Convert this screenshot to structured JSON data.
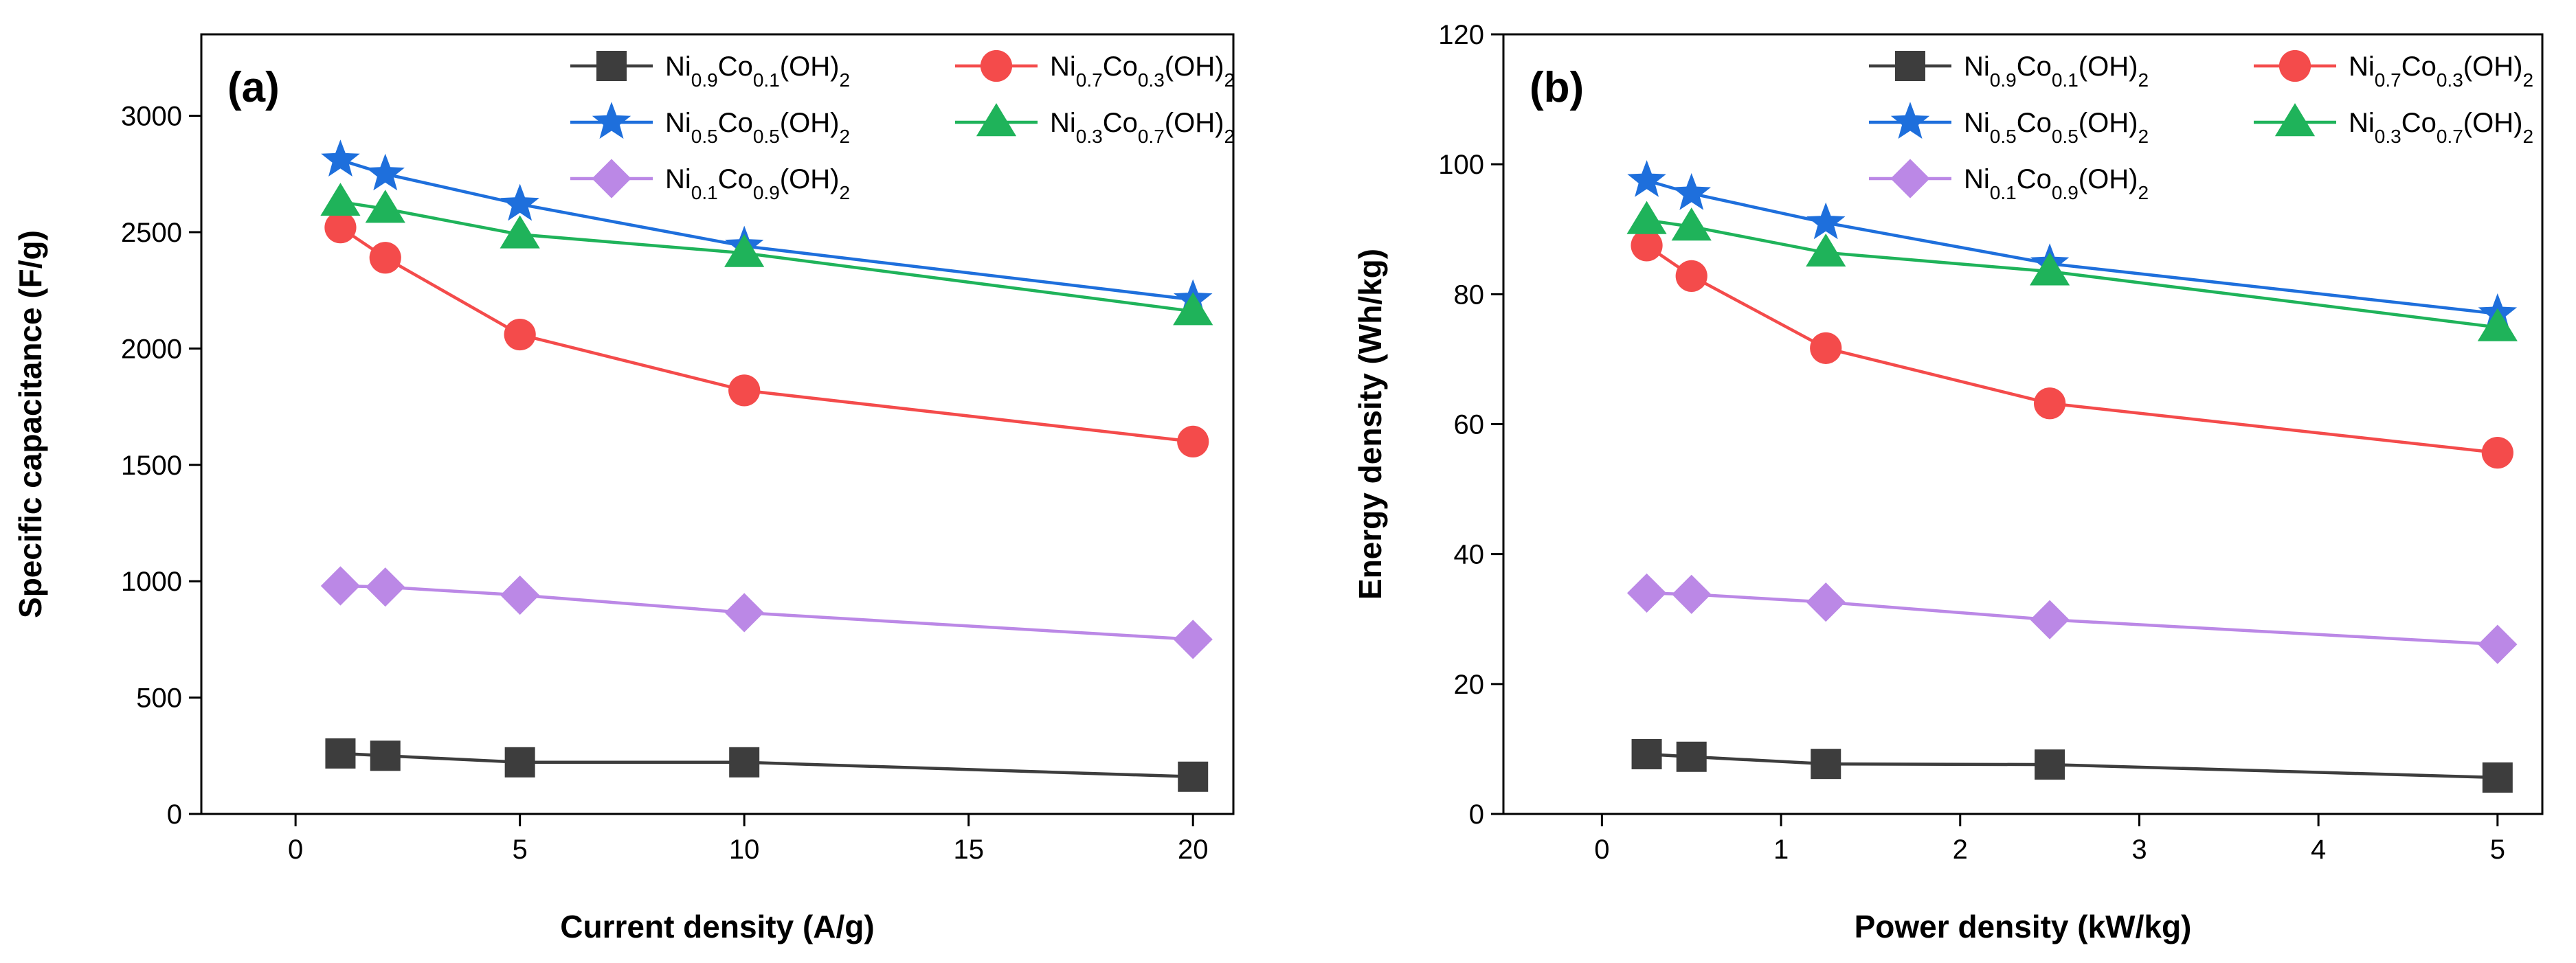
{
  "chart_data": [
    {
      "type": "line",
      "panel_label": "(a)",
      "xlabel": "Current density (A/g)",
      "ylabel": "Specific capacitance  (F/g)",
      "xlim": [
        -2.1,
        20.9
      ],
      "ylim": [
        0,
        3350
      ],
      "xticks": [
        0,
        5,
        10,
        15,
        20
      ],
      "yticks": [
        0,
        500,
        1000,
        1500,
        2000,
        2500,
        3000
      ],
      "x": [
        1,
        2,
        5,
        10,
        20
      ],
      "legend_position": "top-right",
      "series": [
        {
          "key": "s1",
          "name": "Ni0.9Co0.1(OH)2",
          "color": "#3d3d3d",
          "marker": "square",
          "values": [
            260,
            250,
            222,
            222,
            160
          ]
        },
        {
          "key": "s2",
          "name": "Ni0.7Co0.3(OH)2",
          "color": "#f44b4b",
          "marker": "circle",
          "values": [
            2520,
            2390,
            2060,
            1820,
            1600
          ]
        },
        {
          "key": "s3",
          "name": "Ni0.5Co0.5(OH)2",
          "color": "#1e6fdc",
          "marker": "star",
          "values": [
            2810,
            2750,
            2620,
            2440,
            2210
          ]
        },
        {
          "key": "s4",
          "name": "Ni0.3Co0.7(OH)2",
          "color": "#1fb35a",
          "marker": "triangle",
          "values": [
            2630,
            2600,
            2490,
            2410,
            2160
          ]
        },
        {
          "key": "s5",
          "name": "Ni0.1Co0.9(OH)2",
          "color": "#bb88e6",
          "marker": "diamond",
          "values": [
            980,
            975,
            940,
            865,
            750
          ]
        }
      ]
    },
    {
      "type": "line",
      "panel_label": "(b)",
      "xlabel": "Power density (kW/kg)",
      "ylabel": "Energy density (Wh/kg)",
      "xlim": [
        -0.55,
        5.25
      ],
      "ylim": [
        0,
        120
      ],
      "xticks": [
        0,
        1,
        2,
        3,
        4,
        5
      ],
      "yticks": [
        0,
        20,
        40,
        60,
        80,
        100,
        120
      ],
      "x": [
        0.25,
        0.5,
        1.25,
        2.5,
        5
      ],
      "legend_position": "top-right",
      "series": [
        {
          "key": "s1",
          "name": "Ni0.9Co0.1(OH)2",
          "color": "#3d3d3d",
          "marker": "square",
          "values": [
            9.2,
            8.8,
            7.7,
            7.6,
            5.6
          ]
        },
        {
          "key": "s2",
          "name": "Ni0.7Co0.3(OH)2",
          "color": "#f44b4b",
          "marker": "circle",
          "values": [
            87.5,
            82.8,
            71.7,
            63.2,
            55.6
          ]
        },
        {
          "key": "s3",
          "name": "Ni0.5Co0.5(OH)2",
          "color": "#1e6fdc",
          "marker": "star",
          "values": [
            97.5,
            95.5,
            91.0,
            84.7,
            77.0
          ]
        },
        {
          "key": "s4",
          "name": "Ni0.3Co0.7(OH)2",
          "color": "#1fb35a",
          "marker": "triangle",
          "values": [
            91.4,
            90.4,
            86.4,
            83.5,
            74.9
          ]
        },
        {
          "key": "s5",
          "name": "Ni0.1Co0.9(OH)2",
          "color": "#bb88e6",
          "marker": "diamond",
          "values": [
            34.0,
            33.8,
            32.6,
            29.9,
            26.1
          ]
        }
      ]
    }
  ]
}
